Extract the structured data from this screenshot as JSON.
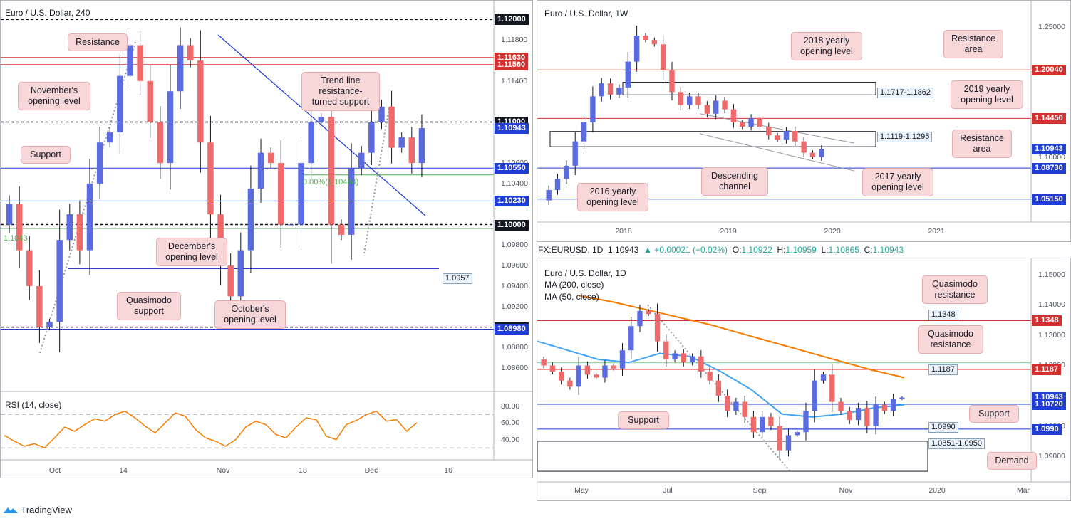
{
  "ohlc_bar": {
    "symbol": "FX:EURUSD, 1D",
    "last": "1.10943",
    "change": "▲ +0.00021 (+0.02%)",
    "o_label": "O:",
    "o": "1.10922",
    "h_label": "H:",
    "h": "1.10959",
    "l_label": "L:",
    "l": "1.10865",
    "c_label": "C:",
    "c": "1.10943"
  },
  "branding": {
    "name": "TradingView"
  },
  "colors": {
    "up": "#5b6be0",
    "down": "#ef6a6a",
    "red_line": "#d32f2f",
    "blue_line": "#1e3cd6",
    "rsi": "#f57c00",
    "ma200": "#f57c00",
    "ma50": "#42a5f5",
    "fib": "#4caf50"
  },
  "chart_data": [
    {
      "id": "h4",
      "type": "candlestick",
      "title": "Euro / U.S. Dollar, 240",
      "ylim": [
        1.084,
        1.121
      ],
      "y_ticks": [
        "1.11800",
        "1.11400",
        "1.11000",
        "1.10600",
        "1.10400",
        "1.10000",
        "1.09800",
        "1.09600",
        "1.09400",
        "1.09200",
        "1.09000",
        "1.08800",
        "1.08600"
      ],
      "x_ticks": [
        "Oct",
        "14",
        "Nov",
        "18",
        "Dec",
        "16"
      ],
      "closes": [
        1.102,
        1.0975,
        1.094,
        1.09,
        1.0905,
        1.0985,
        1.101,
        1.0975,
        1.104,
        1.108,
        1.109,
        1.1145,
        1.1175,
        1.114,
        1.11,
        1.106,
        1.113,
        1.1175,
        1.116,
        1.108,
        1.101,
        1.096,
        1.093,
        1.0975,
        1.1035,
        1.107,
        1.106,
        1.1,
        1.1,
        1.106,
        1.11,
        1.1105,
        1.1,
        1.099,
        1.1055,
        1.107,
        1.11,
        1.1115,
        1.1075,
        1.1085,
        1.106,
        1.1094
      ],
      "levels": [
        {
          "value": "1.12000",
          "style": "dashed-black"
        },
        {
          "value": "1.11630",
          "style": "red"
        },
        {
          "value": "1.11560",
          "style": "red"
        },
        {
          "value": "1.11000",
          "style": "dashed-black"
        },
        {
          "value": "1.10943",
          "style": "price"
        },
        {
          "value": "1.10550",
          "style": "blue"
        },
        {
          "value": "1.10230",
          "style": "blue"
        },
        {
          "value": "1.10000",
          "style": "dashed-black"
        },
        {
          "value": "1.09000",
          "style": "dashed-black"
        },
        {
          "value": "1.08980",
          "style": "blue"
        }
      ],
      "fib_label": "0.00%(1.10484)",
      "fib_left_label": "1.1043",
      "quasimodo_box": "1.0957",
      "annotations": [
        "Resistance",
        "November's\nopening level",
        "Trend line\nresistance-\nturned support",
        "Support",
        "December's\nopening level",
        "Quasimodo\nsupport",
        "October's\nopening level"
      ],
      "rsi": {
        "title": "RSI (14, close)",
        "ylim": [
          20,
          90
        ],
        "y_ticks": [
          "80.00",
          "60.00",
          "40.00"
        ],
        "values": [
          45,
          38,
          32,
          35,
          30,
          42,
          55,
          50,
          58,
          65,
          62,
          70,
          74,
          66,
          56,
          48,
          60,
          72,
          68,
          52,
          42,
          38,
          32,
          40,
          55,
          62,
          58,
          46,
          42,
          55,
          66,
          64,
          44,
          40,
          58,
          63,
          70,
          74,
          62,
          64,
          50,
          60
        ]
      }
    },
    {
      "id": "w1",
      "type": "candlestick",
      "title": "Euro / U.S. Dollar, 1W",
      "ylim": [
        1.03,
        1.272
      ],
      "y_ticks": [
        "1.25000",
        "1.10000"
      ],
      "x_ticks": [
        "2018",
        "2019",
        "2020",
        "2021"
      ],
      "closes": [
        1.062,
        1.075,
        1.09,
        1.118,
        1.14,
        1.17,
        1.185,
        1.172,
        1.18,
        1.21,
        1.24,
        1.235,
        1.23,
        1.2,
        1.175,
        1.16,
        1.17,
        1.16,
        1.15,
        1.165,
        1.155,
        1.14,
        1.135,
        1.145,
        1.135,
        1.125,
        1.12,
        1.13,
        1.118,
        1.105,
        1.1,
        1.1094
      ],
      "levels": [
        {
          "value": "1.20040",
          "style": "red"
        },
        {
          "value": "1.14450",
          "style": "red"
        },
        {
          "value": "1.10943",
          "style": "price"
        },
        {
          "value": "1.08730",
          "style": "blue"
        },
        {
          "value": "1.05150",
          "style": "blue"
        }
      ],
      "boxes": [
        "1.1717-1.1862",
        "1.1119-1.1295"
      ],
      "annotations": [
        "2018 yearly\nopening level",
        "Resistance\narea",
        "2019 yearly\nopening level",
        "Resistance\narea",
        "Descending\nchannel",
        "2016 yearly\nopening level",
        "2017 yearly\nopening level"
      ]
    },
    {
      "id": "d1",
      "type": "candlestick",
      "title": "Euro / U.S. Dollar, 1D",
      "ylim": [
        1.083,
        1.153
      ],
      "y_ticks": [
        "1.15000",
        "1.14000",
        "1.13000",
        "1.12000",
        "1.10000",
        "1.09000"
      ],
      "x_ticks": [
        "May",
        "Jul",
        "Sep",
        "Nov",
        "2020",
        "Mar"
      ],
      "closes": [
        1.12,
        1.118,
        1.115,
        1.113,
        1.12,
        1.117,
        1.116,
        1.12,
        1.119,
        1.125,
        1.133,
        1.138,
        1.137,
        1.128,
        1.122,
        1.124,
        1.121,
        1.123,
        1.118,
        1.115,
        1.11,
        1.105,
        1.108,
        1.103,
        1.098,
        1.103,
        1.1,
        1.092,
        1.097,
        1.098,
        1.105,
        1.115,
        1.117,
        1.108,
        1.105,
        1.102,
        1.106,
        1.1,
        1.107,
        1.105,
        1.109,
        1.1094
      ],
      "ma200": [
        1.143,
        1.141,
        1.1385,
        1.136,
        1.1335,
        1.1305,
        1.1275,
        1.1245,
        1.1215,
        1.1185,
        1.116
      ],
      "ma50": [
        1.128,
        1.125,
        1.122,
        1.121,
        1.124,
        1.123,
        1.118,
        1.112,
        1.104,
        1.103,
        1.104,
        1.106,
        1.107
      ],
      "levels": [
        {
          "value": "1.1348",
          "style": "red"
        },
        {
          "value": "1.1187",
          "style": "red"
        },
        {
          "value": "1.10943",
          "style": "price"
        },
        {
          "value": "1.10720",
          "style": "blue"
        },
        {
          "value": "1.0990",
          "style": "blue"
        }
      ],
      "boxes": [
        "1.0851-1.0950"
      ],
      "ma_legend": [
        "MA (200, close)",
        "MA (50, close)"
      ],
      "annotations": [
        "Quasimodo\nresistance",
        "Quasimodo\nresistance",
        "Support",
        "Support",
        "Demand"
      ]
    }
  ]
}
